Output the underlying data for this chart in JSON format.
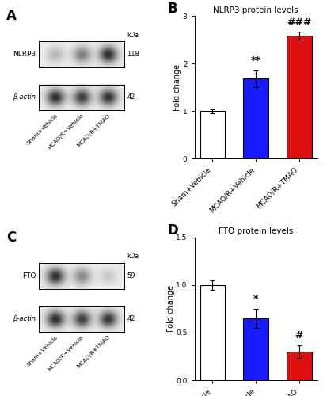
{
  "panel_B": {
    "title": "NLRP3 protein levels",
    "categories": [
      "Sham+Vehicle",
      "MCAO/R+Vehicle",
      "MCAO/R+TMAO"
    ],
    "values": [
      1.0,
      1.68,
      2.58
    ],
    "errors": [
      0.04,
      0.18,
      0.08
    ],
    "colors": [
      "#ffffff",
      "#1a1aff",
      "#dd1111"
    ],
    "ylabel": "Fold change",
    "ylim": [
      0,
      3
    ],
    "yticks": [
      0,
      1,
      2,
      3
    ],
    "significance": [
      "",
      "**",
      "###"
    ],
    "sig_fontsize": 9
  },
  "panel_D": {
    "title": "FTO protein levels",
    "categories": [
      "Sham+Vehicle",
      "MCAO/R+Vehicle",
      "MCAO/R+TMAO"
    ],
    "values": [
      1.0,
      0.65,
      0.3
    ],
    "errors": [
      0.05,
      0.1,
      0.07
    ],
    "colors": [
      "#ffffff",
      "#1a1aff",
      "#dd1111"
    ],
    "ylabel": "Fold change",
    "ylim": [
      0,
      1.5
    ],
    "yticks": [
      0.0,
      0.5,
      1.0,
      1.5
    ],
    "significance": [
      "",
      "*",
      "#"
    ],
    "sig_fontsize": 9
  },
  "panel_A": {
    "protein": "NLRP3",
    "actin": "β-actin",
    "kda_protein": "118",
    "kda_actin": "42",
    "groups": [
      "Sham+Vehicle",
      "MCAO/R+Vehicle",
      "MCAO/R+TMAO"
    ],
    "band_pattern_protein": [
      0.28,
      0.58,
      1.0
    ],
    "band_pattern_actin": [
      1.0,
      0.92,
      0.97
    ]
  },
  "panel_C": {
    "protein": "FTO",
    "actin": "β-actin",
    "kda_protein": "59",
    "kda_actin": "42",
    "groups": [
      "Sham+Vehicle",
      "MCAO/R+Vehicle",
      "MCAO/R+TMAO"
    ],
    "band_pattern_protein": [
      1.0,
      0.52,
      0.18
    ],
    "band_pattern_actin": [
      1.0,
      0.9,
      0.95
    ]
  },
  "figure_bg": "#ffffff",
  "panel_label_fontsize": 12,
  "axis_fontsize": 7,
  "title_fontsize": 7.5,
  "tick_fontsize": 6.5
}
